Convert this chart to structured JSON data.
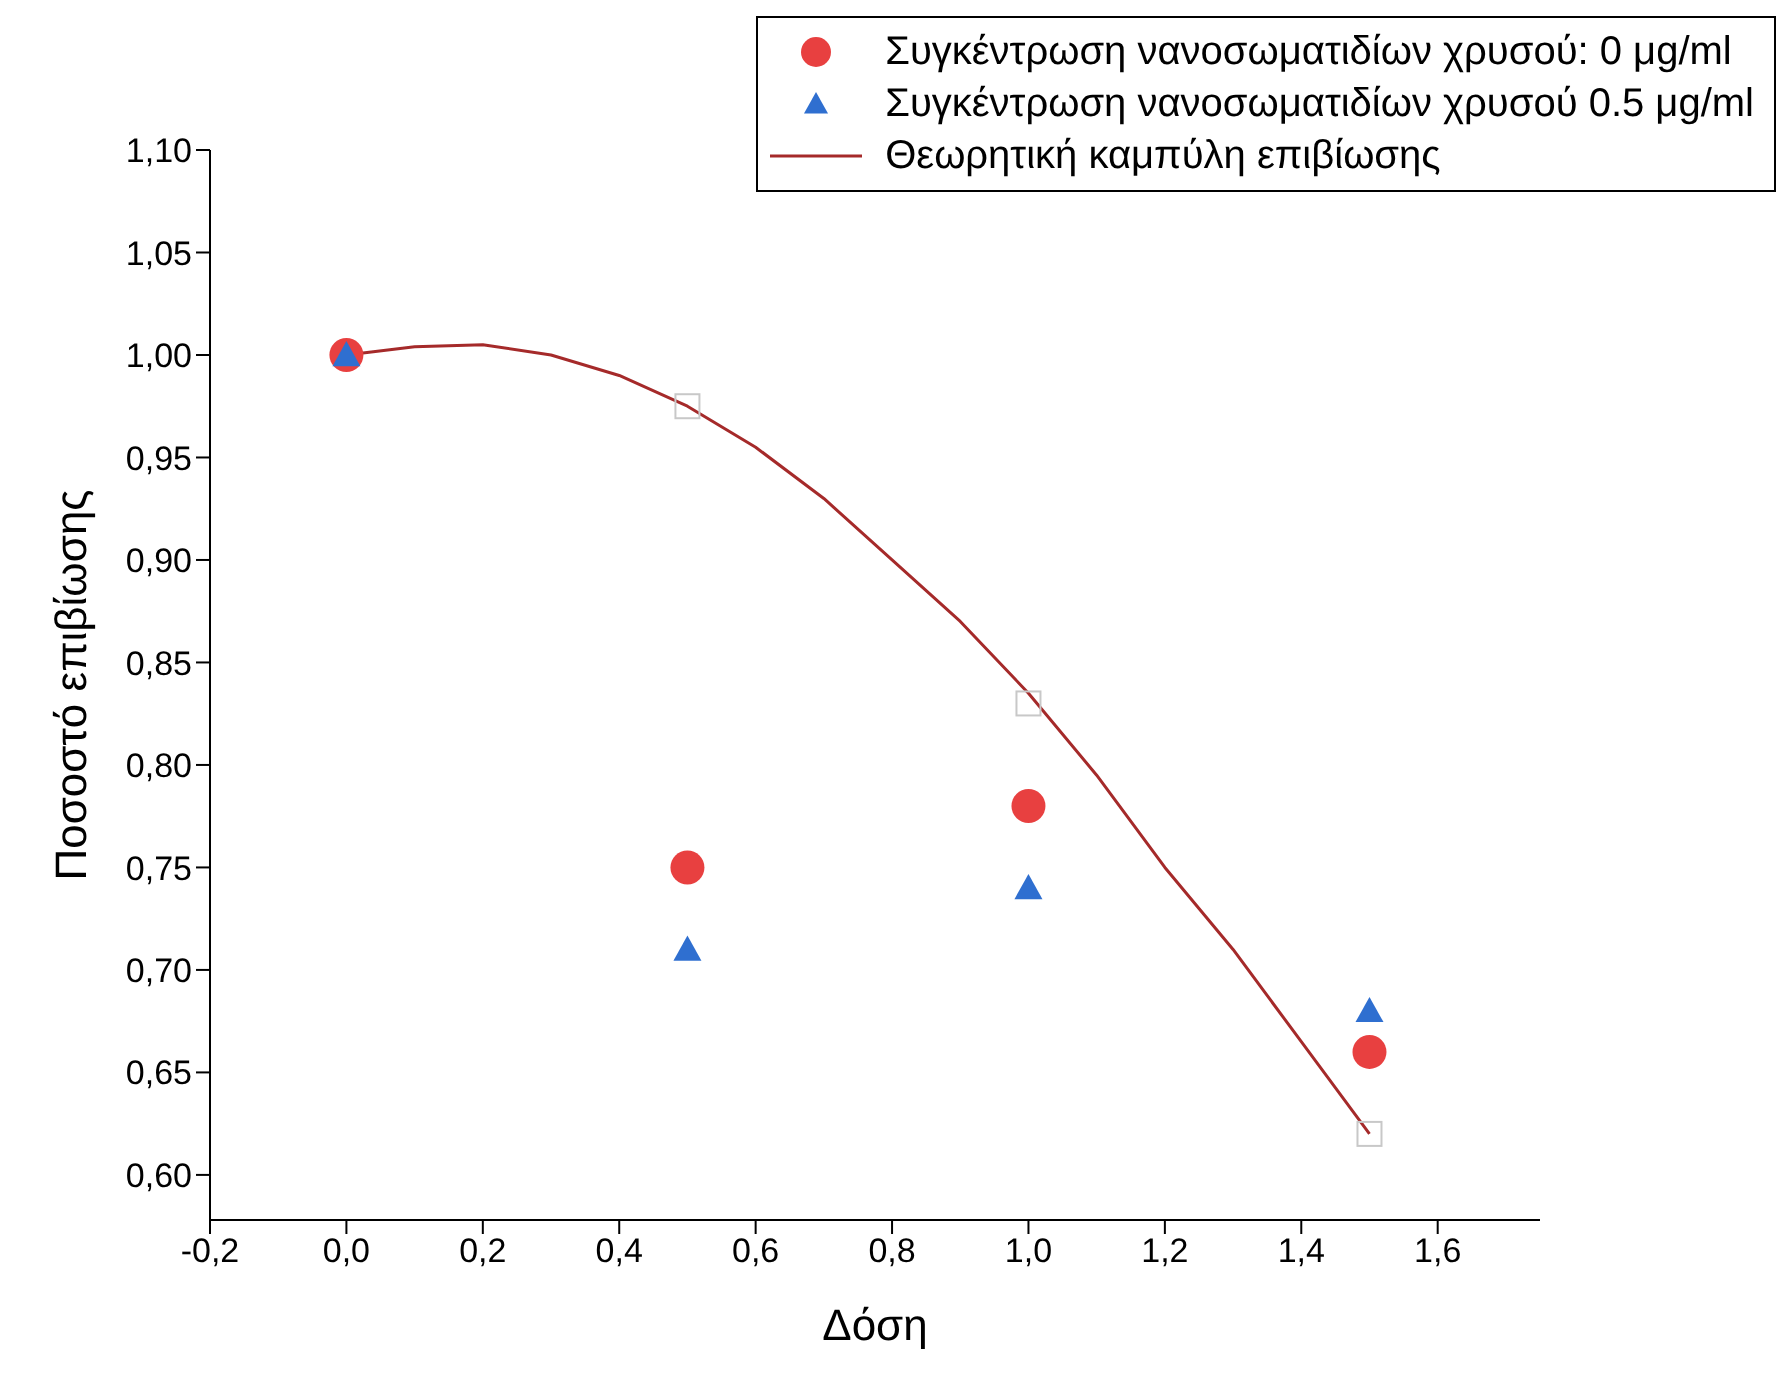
{
  "chart_data": {
    "type": "scatter",
    "xlabel": "Δόση",
    "ylabel": "Ποσοστό επιβίωσης",
    "xlim": [
      -0.2,
      1.75
    ],
    "ylim": [
      0.578,
      1.1
    ],
    "xticks": [
      {
        "value": -0.2,
        "label": "-0,2"
      },
      {
        "value": 0,
        "label": "0,0"
      },
      {
        "value": 0.2,
        "label": "0,2"
      },
      {
        "value": 0.4,
        "label": "0,4"
      },
      {
        "value": 0.6,
        "label": "0,6"
      },
      {
        "value": 0.8,
        "label": "0,8"
      },
      {
        "value": 1,
        "label": "1,0"
      },
      {
        "value": 1.2,
        "label": "1,2"
      },
      {
        "value": 1.4,
        "label": "1,4"
      },
      {
        "value": 1.6,
        "label": "1,6"
      }
    ],
    "yticks": [
      {
        "value": 0.6,
        "label": "0,60"
      },
      {
        "value": 0.65,
        "label": "0,65"
      },
      {
        "value": 0.7,
        "label": "0,70"
      },
      {
        "value": 0.75,
        "label": "0,75"
      },
      {
        "value": 0.8,
        "label": "0,80"
      },
      {
        "value": 0.85,
        "label": "0,85"
      },
      {
        "value": 0.9,
        "label": "0,90"
      },
      {
        "value": 0.95,
        "label": "0,95"
      },
      {
        "value": 1,
        "label": "1,00"
      },
      {
        "value": 1.05,
        "label": "1,05"
      },
      {
        "value": 1.1,
        "label": "1,10"
      }
    ],
    "grid": false,
    "legend": "top right",
    "series": [
      {
        "name": "Συγκέντρωση νανοσωματιδίων χρυσού: 0 μg/ml",
        "marker": "circle",
        "color": "#e84040",
        "x": [
          0,
          0.5,
          1,
          1.5
        ],
        "values": [
          1,
          0.75,
          0.78,
          0.66
        ]
      },
      {
        "name": "Συγκέντρωση νανοσωματιδίων χρυσού 0.5 μg/ml",
        "marker": "triangle",
        "color": "#2f6fd0",
        "x": [
          0,
          0.5,
          1,
          1.5
        ],
        "values": [
          1,
          0.71,
          0.74,
          0.68
        ]
      },
      {
        "name": "Θεωρητική καμπύλη επιβίωσης",
        "type": "line",
        "marker": "none",
        "line_style": "solid",
        "color": "#a52a2a",
        "x": [
          0,
          0.1,
          0.2,
          0.3,
          0.4,
          0.5,
          0.6,
          0.7,
          0.8,
          0.9,
          1,
          1.1,
          1.2,
          1.3,
          1.4,
          1.5
        ],
        "values": [
          1,
          1.004,
          1.005,
          1,
          0.99,
          0.975,
          0.955,
          0.93,
          0.9,
          0.87,
          0.835,
          0.795,
          0.75,
          0.71,
          0.665,
          0.62
        ]
      },
      {
        "marker": "square",
        "color": "#c8c8c8",
        "x": [
          0.5,
          1,
          1.5
        ],
        "values": [
          0.975,
          0.83,
          0.62
        ]
      }
    ]
  }
}
